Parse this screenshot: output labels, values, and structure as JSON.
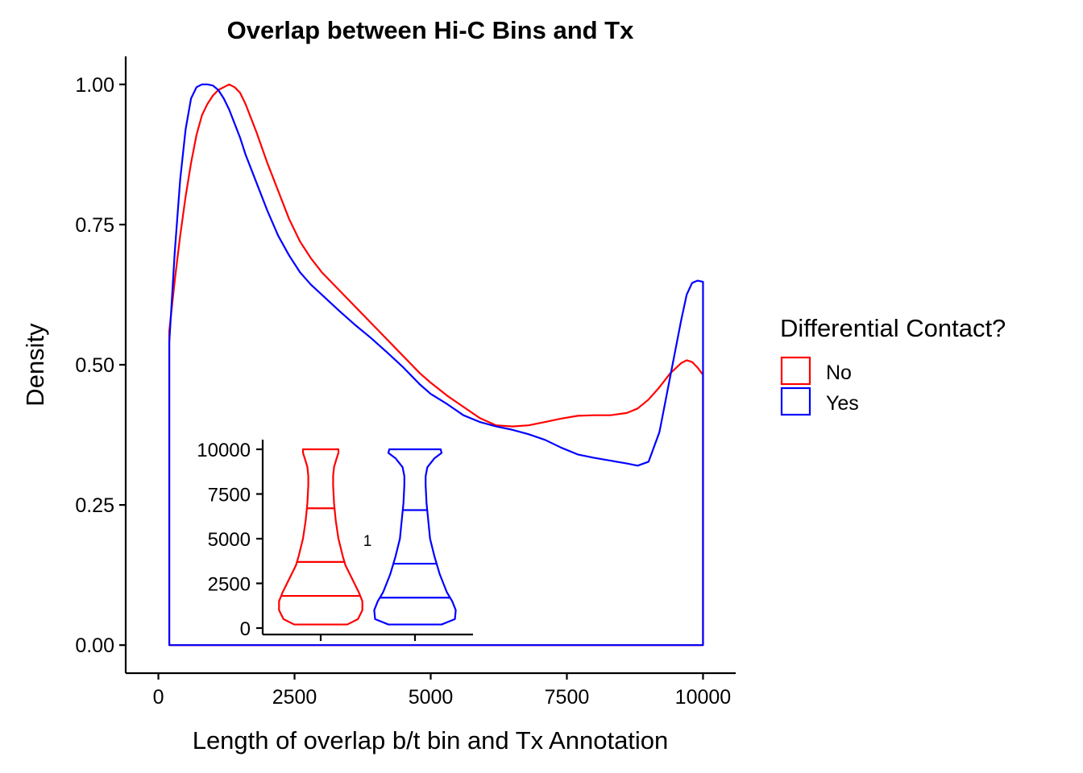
{
  "chart_data": [
    {
      "type": "line",
      "title": "Overlap between Hi-C Bins and Tx",
      "xlabel": "Length of overlap b/t bin and Tx Annotation",
      "ylabel": "Density",
      "xlim": [
        -600,
        10600
      ],
      "ylim": [
        -0.05,
        1.05
      ],
      "xticks": [
        0,
        2500,
        5000,
        7500,
        10000
      ],
      "xtick_labels": [
        "0",
        "2500",
        "5000",
        "7500",
        "10000"
      ],
      "yticks": [
        0,
        0.25,
        0.5,
        0.75,
        1.0
      ],
      "ytick_labels": [
        "0.00",
        "0.25",
        "0.50",
        "0.75",
        "1.00"
      ],
      "grid": false,
      "legend": {
        "title": "Differential Contact?",
        "position": "right",
        "entries": [
          {
            "label": "No",
            "color": "#FF0000"
          },
          {
            "label": "Yes",
            "color": "#0000FF"
          }
        ]
      },
      "series": [
        {
          "name": "No",
          "color": "#FF0000",
          "x": [
            200,
            300,
            400,
            500,
            600,
            700,
            800,
            900,
            1000,
            1100,
            1200,
            1300,
            1400,
            1500,
            1600,
            1800,
            2000,
            2200,
            2400,
            2600,
            2800,
            3000,
            3300,
            3600,
            3900,
            4200,
            4500,
            4800,
            5000,
            5300,
            5600,
            5900,
            6200,
            6500,
            6800,
            7100,
            7400,
            7700,
            8000,
            8300,
            8600,
            8800,
            9000,
            9200,
            9400,
            9600,
            9700,
            9800,
            9900,
            10000
          ],
          "y": [
            0.56,
            0.65,
            0.73,
            0.8,
            0.86,
            0.91,
            0.945,
            0.965,
            0.98,
            0.99,
            0.995,
            1.0,
            0.995,
            0.985,
            0.965,
            0.915,
            0.86,
            0.81,
            0.76,
            0.72,
            0.69,
            0.665,
            0.635,
            0.605,
            0.575,
            0.545,
            0.515,
            0.485,
            0.468,
            0.445,
            0.425,
            0.405,
            0.392,
            0.39,
            0.392,
            0.398,
            0.404,
            0.409,
            0.41,
            0.41,
            0.414,
            0.422,
            0.438,
            0.46,
            0.485,
            0.503,
            0.508,
            0.505,
            0.495,
            0.482
          ]
        },
        {
          "name": "Yes",
          "color": "#0000FF",
          "x": [
            200,
            300,
            400,
            500,
            600,
            700,
            800,
            900,
            1000,
            1100,
            1200,
            1300,
            1400,
            1500,
            1600,
            1800,
            2000,
            2200,
            2400,
            2600,
            2800,
            3000,
            3300,
            3600,
            3900,
            4200,
            4500,
            4800,
            5000,
            5300,
            5600,
            5900,
            6200,
            6500,
            6800,
            7100,
            7400,
            7700,
            8000,
            8300,
            8600,
            8800,
            9000,
            9200,
            9400,
            9600,
            9700,
            9800,
            9900,
            10000
          ],
          "y": [
            0.54,
            0.7,
            0.83,
            0.92,
            0.975,
            0.995,
            1.0,
            1.0,
            0.998,
            0.99,
            0.975,
            0.955,
            0.93,
            0.905,
            0.875,
            0.825,
            0.775,
            0.73,
            0.695,
            0.665,
            0.643,
            0.625,
            0.598,
            0.572,
            0.548,
            0.522,
            0.495,
            0.465,
            0.448,
            0.43,
            0.41,
            0.398,
            0.39,
            0.384,
            0.376,
            0.366,
            0.352,
            0.34,
            0.334,
            0.329,
            0.324,
            0.32,
            0.327,
            0.38,
            0.48,
            0.58,
            0.625,
            0.646,
            0.65,
            0.648
          ]
        }
      ]
    },
    {
      "type": "violin",
      "title": "",
      "center_label": "1",
      "ylim": [
        0,
        10000
      ],
      "yticks": [
        0,
        2500,
        5000,
        7500,
        10000
      ],
      "ytick_labels": [
        "0",
        "2500",
        "5000",
        "7500",
        "10000"
      ],
      "series": [
        {
          "name": "No",
          "color": "#FF0000",
          "profile_y": [
            200,
            500,
            1000,
            1500,
            2000,
            2500,
            3000,
            3500,
            4000,
            5000,
            6000,
            7000,
            8000,
            8500,
            9000,
            9500,
            9800,
            10000
          ],
          "half_width": [
            0.3,
            0.42,
            0.47,
            0.47,
            0.43,
            0.38,
            0.33,
            0.28,
            0.25,
            0.2,
            0.17,
            0.15,
            0.14,
            0.14,
            0.15,
            0.18,
            0.2,
            0.2
          ],
          "quantiles": [
            1800,
            3700,
            6700
          ]
        },
        {
          "name": "Yes",
          "color": "#0000FF",
          "profile_y": [
            200,
            500,
            1000,
            1500,
            2000,
            2500,
            3000,
            3500,
            4000,
            5000,
            6000,
            7000,
            8000,
            8500,
            9000,
            9500,
            9800,
            10000
          ],
          "half_width": [
            0.3,
            0.45,
            0.46,
            0.42,
            0.36,
            0.32,
            0.28,
            0.25,
            0.22,
            0.17,
            0.15,
            0.13,
            0.12,
            0.12,
            0.14,
            0.22,
            0.3,
            0.29
          ],
          "quantiles": [
            1700,
            3600,
            6600
          ]
        }
      ]
    }
  ]
}
